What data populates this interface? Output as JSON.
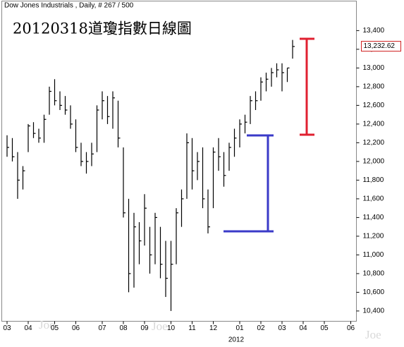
{
  "chart_data": {
    "type": "ohlc",
    "header": "Dow Jones Industrials , Daily, # 267 / 500",
    "title": "20120318道瓊指數日線圖",
    "x_year_label": "2012",
    "watermarks": [
      "Joe",
      "Joe",
      "Joe"
    ],
    "categories": [
      "03",
      null,
      null,
      null,
      "04",
      null,
      null,
      null,
      null,
      "05",
      null,
      null,
      null,
      "06",
      null,
      null,
      null,
      null,
      "07",
      null,
      null,
      null,
      "08",
      null,
      null,
      null,
      "09",
      null,
      null,
      null,
      null,
      "10",
      null,
      null,
      null,
      "11",
      null,
      null,
      null,
      "12",
      null,
      null,
      null,
      null,
      "01",
      null,
      null,
      null,
      "02",
      null,
      null,
      null,
      "03",
      null,
      null,
      null,
      "04",
      null,
      null,
      null,
      "05",
      null,
      null,
      null,
      null,
      "06",
      null
    ],
    "high": [
      12280,
      12250,
      12100,
      11950,
      12400,
      12420,
      12350,
      12500,
      12800,
      12880,
      12750,
      12700,
      12600,
      12450,
      12200,
      12100,
      12200,
      12600,
      12750,
      12700,
      12750,
      12650,
      12150,
      11600,
      11450,
      11350,
      11650,
      11300,
      11450,
      11300,
      11150,
      11150,
      11500,
      11700,
      12300,
      12250,
      12100,
      12150,
      11700,
      12150,
      12250,
      12100,
      12200,
      12350,
      12450,
      12500,
      12700,
      12750,
      12900,
      12950,
      13000,
      13050,
      13050,
      13000,
      13300,
      null,
      null,
      null,
      null,
      null,
      null,
      null,
      null,
      null,
      null,
      null,
      null
    ],
    "low": [
      12050,
      12000,
      11600,
      11700,
      12100,
      12250,
      12200,
      12200,
      12500,
      12600,
      12550,
      12500,
      12350,
      12100,
      11950,
      11870,
      11950,
      12100,
      12450,
      12400,
      12350,
      12150,
      11400,
      10600,
      10650,
      10900,
      11100,
      10800,
      10900,
      10750,
      10550,
      10400,
      10900,
      11300,
      11600,
      11700,
      11800,
      11500,
      11230,
      11500,
      11900,
      11730,
      11900,
      12050,
      12150,
      12300,
      12400,
      12550,
      12650,
      12750,
      12800,
      12900,
      12750,
      12850,
      13100,
      null,
      null,
      null,
      null,
      null,
      null,
      null,
      null,
      null,
      null,
      null,
      null
    ],
    "close": [
      12150,
      12050,
      11800,
      11900,
      12380,
      12300,
      12250,
      12450,
      12750,
      12650,
      12600,
      12550,
      12400,
      12150,
      12000,
      12000,
      12080,
      12550,
      12650,
      12480,
      12680,
      12250,
      11450,
      10800,
      11300,
      11150,
      11500,
      11000,
      11400,
      10900,
      10750,
      10900,
      11450,
      11600,
      12200,
      11900,
      12000,
      11600,
      11300,
      12100,
      12050,
      11850,
      12150,
      12250,
      12400,
      12420,
      12650,
      12650,
      12850,
      12880,
      12950,
      12980,
      12950,
      13000,
      13230,
      null,
      null,
      null,
      null,
      null,
      null,
      null,
      null,
      null,
      null,
      null,
      null
    ],
    "color": "#000000",
    "last_price": {
      "value": 13232.62,
      "label": "13,232.62"
    },
    "ylim": [
      10290,
      13716
    ],
    "yticks": [
      {
        "value": 10400,
        "label": "10,400"
      },
      {
        "value": 10600,
        "label": "10,600"
      },
      {
        "value": 10800,
        "label": "10,800"
      },
      {
        "value": 11000,
        "label": "11,000"
      },
      {
        "value": 11200,
        "label": "11,200"
      },
      {
        "value": 11400,
        "label": "11,400"
      },
      {
        "value": 11600,
        "label": "11,600"
      },
      {
        "value": 11800,
        "label": "11,800"
      },
      {
        "value": 12000,
        "label": "12,000"
      },
      {
        "value": 12200,
        "label": "12,200"
      },
      {
        "value": 12400,
        "label": "12,400"
      },
      {
        "value": 12600,
        "label": "12,600"
      },
      {
        "value": 12800,
        "label": "12,800"
      },
      {
        "value": 13000,
        "label": "13,000"
      },
      {
        "value": 13200,
        "label": "13,200"
      },
      {
        "value": 13400,
        "label": "13,400"
      }
    ]
  }
}
